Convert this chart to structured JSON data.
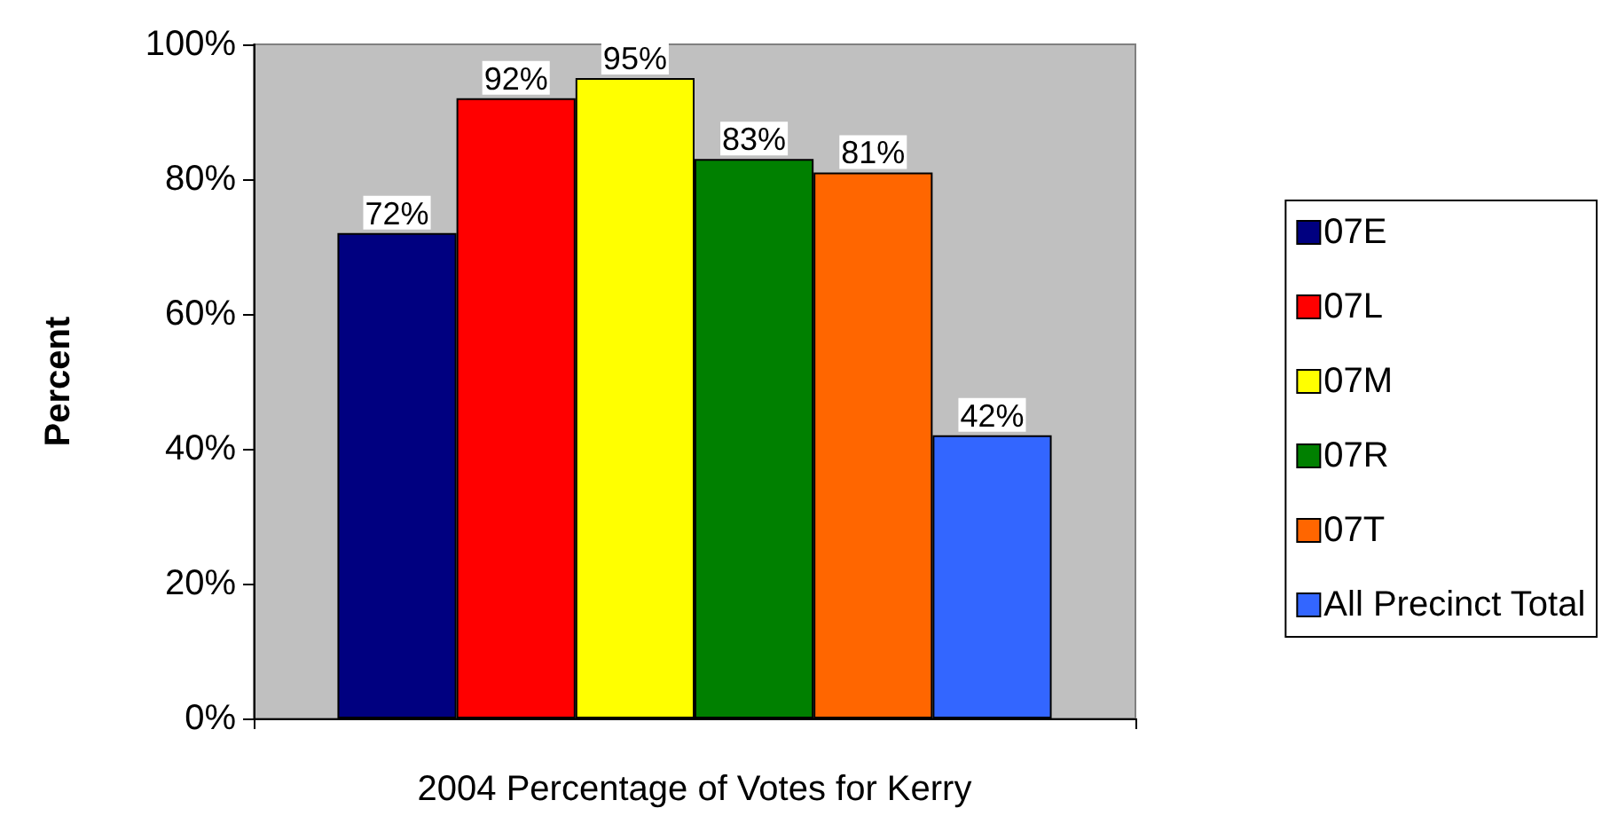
{
  "chart_data": {
    "type": "bar",
    "xlabel": "2004 Percentage of Votes for Kerry",
    "ylabel": "Percent",
    "categories": [
      null
    ],
    "ylim": [
      0,
      100
    ],
    "yticks": [
      {
        "value": 0,
        "label": "0%"
      },
      {
        "value": 20,
        "label": "20%"
      },
      {
        "value": 40,
        "label": "40%"
      },
      {
        "value": 60,
        "label": "60%"
      },
      {
        "value": 80,
        "label": "80%"
      },
      {
        "value": 100,
        "label": "100%"
      }
    ],
    "legend": "right",
    "series": [
      {
        "name": "07E",
        "color": "#000080",
        "values": [
          72
        ],
        "value_labels": [
          "72%"
        ]
      },
      {
        "name": "07L",
        "color": "#ff0000",
        "values": [
          92
        ],
        "value_labels": [
          "92%"
        ]
      },
      {
        "name": "07M",
        "color": "#ffff00",
        "values": [
          95
        ],
        "value_labels": [
          "95%"
        ]
      },
      {
        "name": "07R",
        "color": "#008000",
        "values": [
          83
        ],
        "value_labels": [
          "83%"
        ]
      },
      {
        "name": "07T",
        "color": "#ff6600",
        "values": [
          81
        ],
        "value_labels": [
          "81%"
        ]
      },
      {
        "name": "All Precinct Total",
        "color": "#3366ff",
        "values": [
          42
        ],
        "value_labels": [
          "42%"
        ]
      }
    ]
  }
}
